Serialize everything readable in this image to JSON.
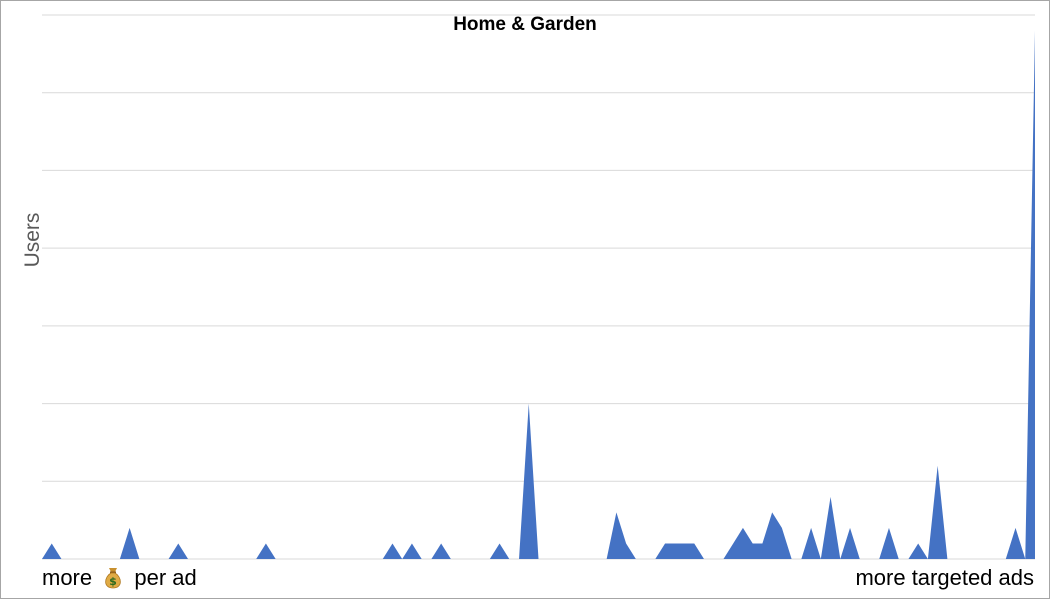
{
  "chart_data": {
    "type": "area",
    "title": "Home & Garden",
    "ylabel": "Users",
    "xlabel_left_prefix": "more",
    "xlabel_left_icon": "money-bag-icon",
    "xlabel_left_suffix": "per ad",
    "xlabel_right": "more targeted ads",
    "grid": true,
    "legend": "none",
    "ylim": [
      0,
      7
    ],
    "series": [
      {
        "color": "#4472c4",
        "values": [
          0,
          0.2,
          0,
          0,
          0,
          0,
          0,
          0,
          0,
          0.4,
          0,
          0,
          0,
          0,
          0.2,
          0,
          0,
          0,
          0,
          0,
          0,
          0,
          0,
          0.2,
          0,
          0,
          0,
          0,
          0,
          0,
          0,
          0,
          0,
          0,
          0,
          0,
          0.2,
          0,
          0.2,
          0,
          0,
          0.2,
          0,
          0,
          0,
          0,
          0,
          0.2,
          0,
          0,
          2,
          0,
          0,
          0,
          0,
          0,
          0,
          0,
          0,
          0.6,
          0.2,
          0,
          0,
          0,
          0.2,
          0.2,
          0.2,
          0.2,
          0,
          0,
          0,
          0.2,
          0.4,
          0.2,
          0.2,
          0.6,
          0.4,
          0,
          0,
          0.4,
          0,
          0.8,
          0,
          0.4,
          0,
          0,
          0,
          0.4,
          0,
          0,
          0.2,
          0,
          1.2,
          0,
          0,
          0,
          0,
          0,
          0,
          0,
          0.4,
          0,
          6.8
        ]
      }
    ]
  }
}
